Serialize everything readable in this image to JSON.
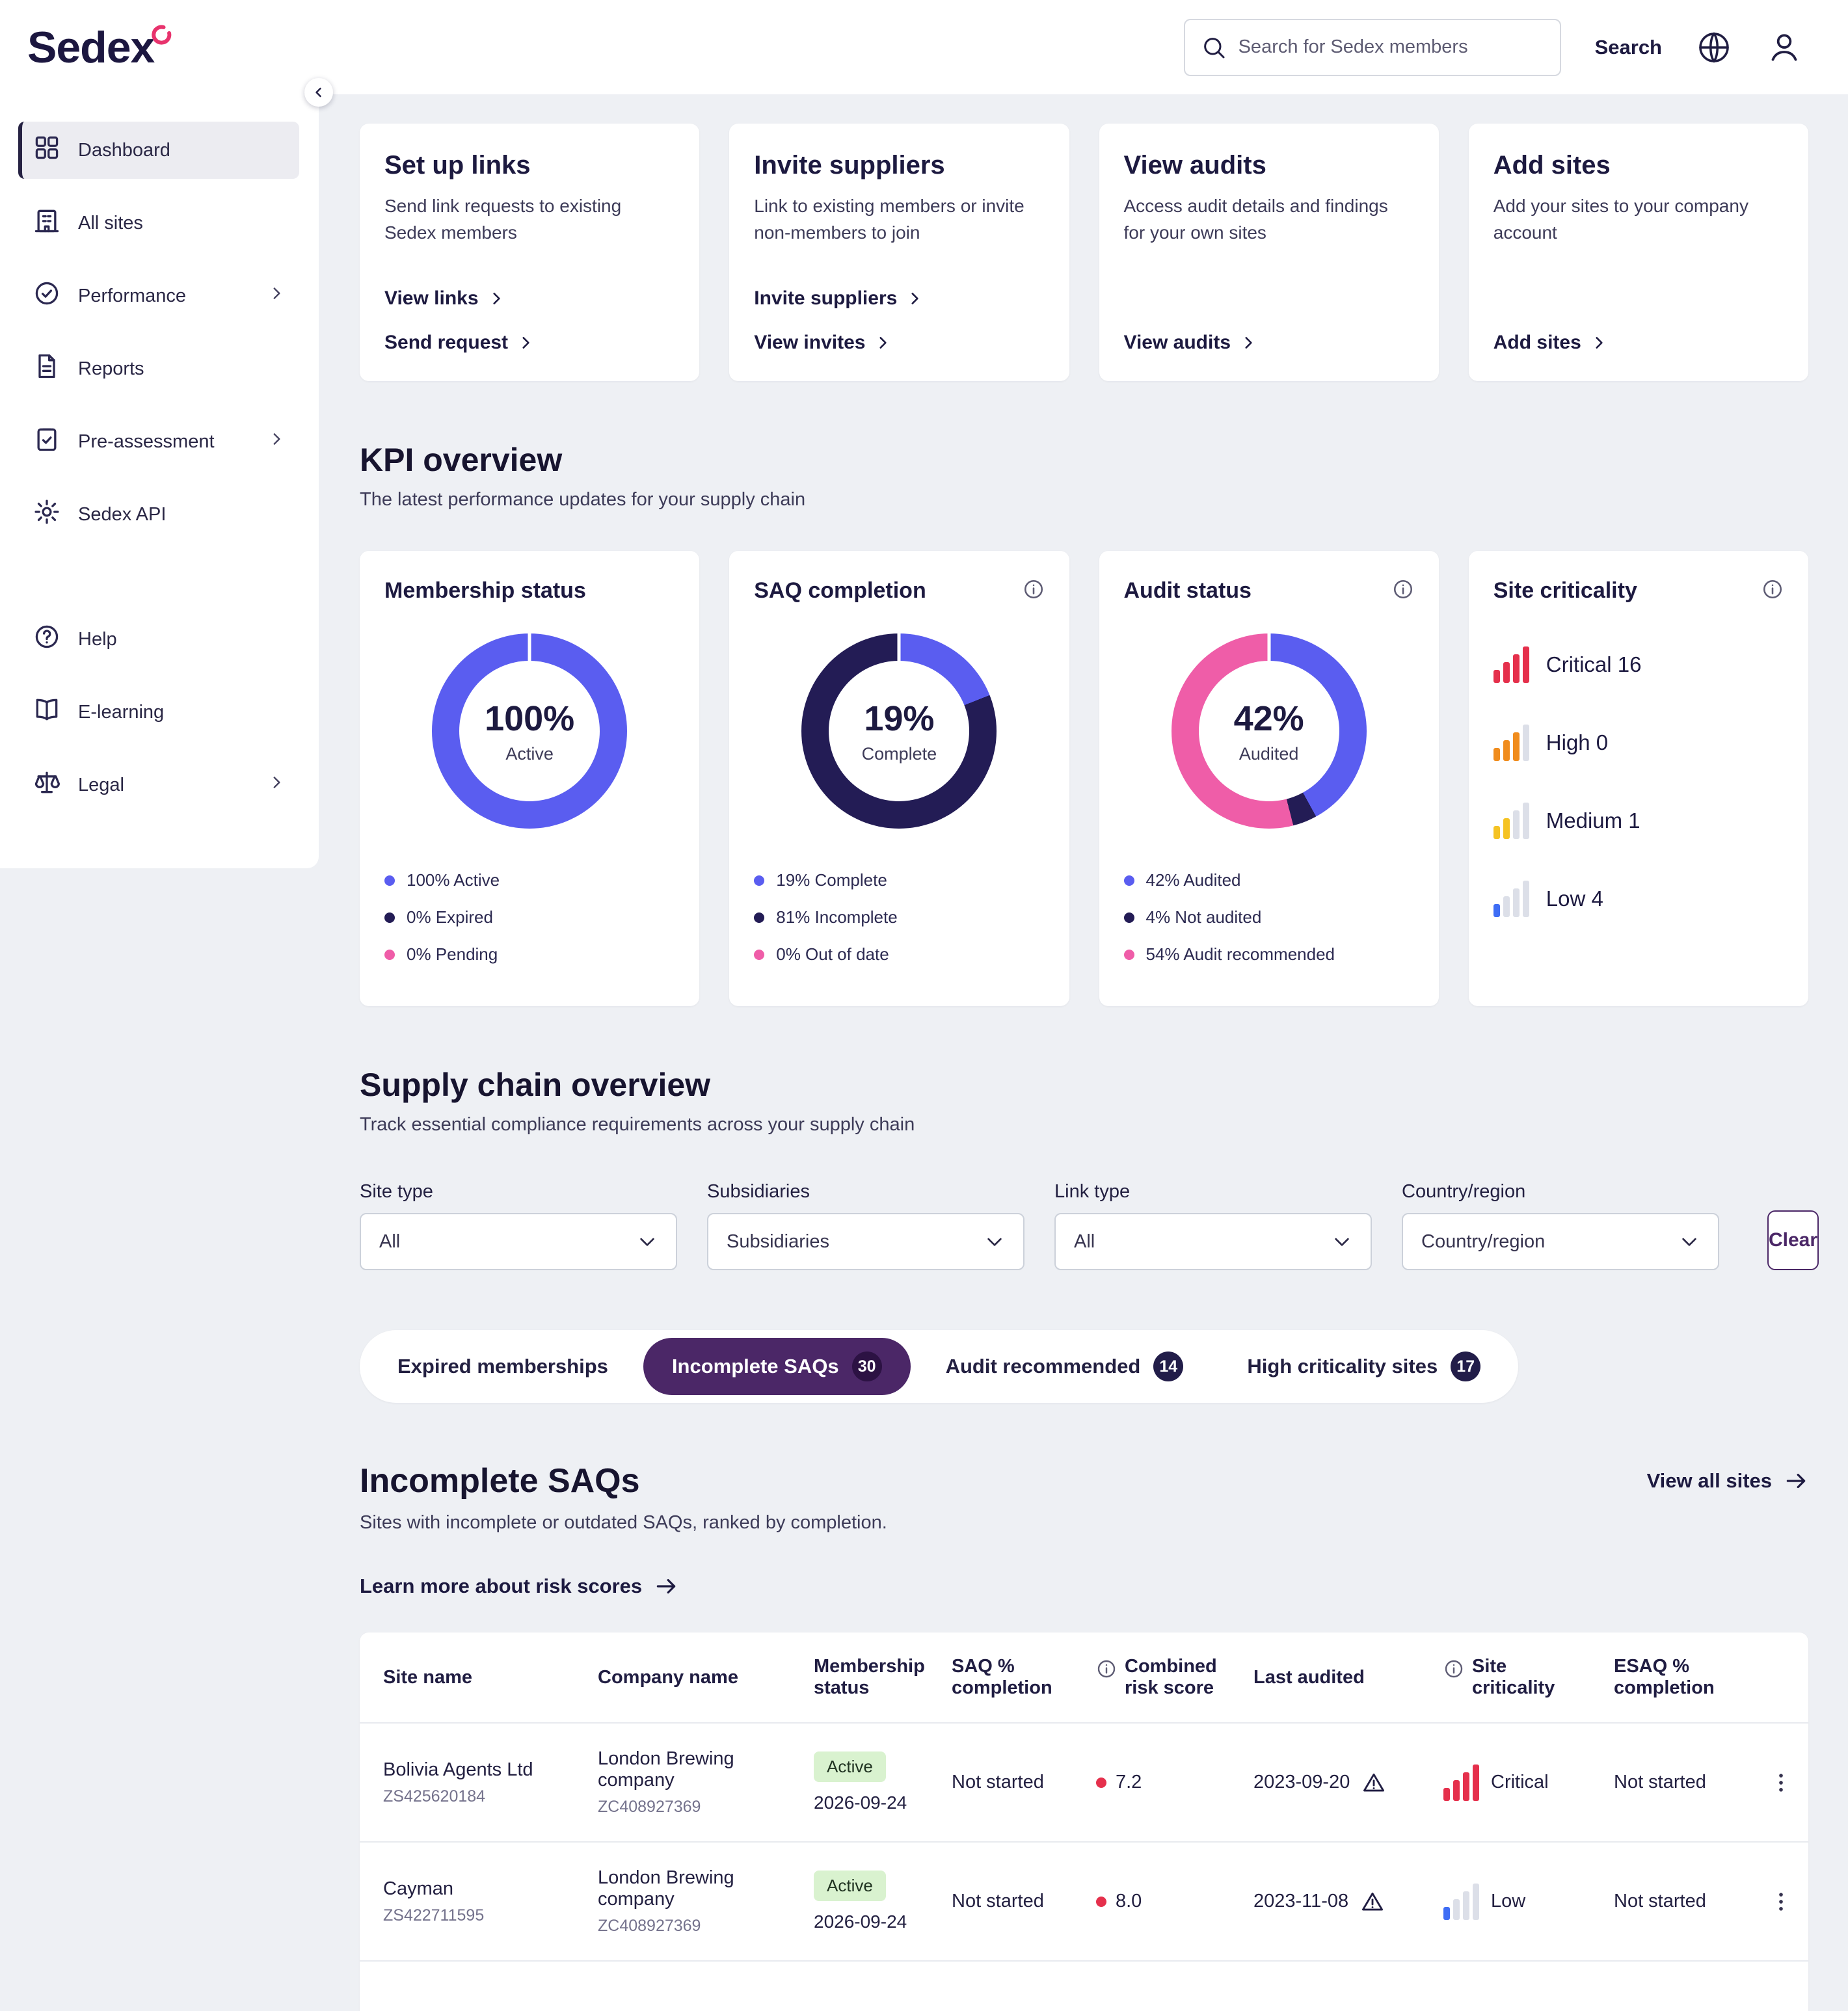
{
  "colors": {
    "brand_purple": "#4b2767",
    "chart_blue": "#5a5df0",
    "chart_dark_navy": "#231c55",
    "chart_pink": "#ef5da8",
    "critical_red": "#e5304c",
    "high_orange": "#f08c1d",
    "medium_yellow": "#f5c324",
    "low_blue": "#3e6df5",
    "active_badge_green": "#d9f2cf"
  },
  "topbar": {
    "logo_text": "Sedex",
    "search_placeholder": "Search for Sedex members",
    "search_button": "Search"
  },
  "sidebar": {
    "main_items": [
      {
        "label": "Dashboard"
      },
      {
        "label": "All sites"
      },
      {
        "label": "Performance"
      },
      {
        "label": "Reports"
      },
      {
        "label": "Pre-assessment"
      },
      {
        "label": "Sedex API"
      }
    ],
    "secondary_items": [
      {
        "label": "Help"
      },
      {
        "label": "E-learning"
      },
      {
        "label": "Legal"
      }
    ]
  },
  "action_cards": [
    {
      "title": "Set up links",
      "description": "Send link requests to existing Sedex members",
      "link1": "View links",
      "link2": "Send request"
    },
    {
      "title": "Invite suppliers",
      "description": "Link to existing members or invite non-members to join",
      "link1": "Invite suppliers",
      "link2": "View invites"
    },
    {
      "title": "View audits",
      "description": "Access audit details and findings for your own sites",
      "link1": "View audits"
    },
    {
      "title": "Add sites",
      "description": "Add your sites to your company account",
      "link1": "Add sites"
    }
  ],
  "kpi": {
    "heading": "KPI overview",
    "subheading": "The latest performance updates for your supply chain",
    "membership": {
      "title": "Membership status",
      "center_value": "100%",
      "center_label": "Active",
      "segments": [
        {
          "label": "Active",
          "pct": 100,
          "color": "#5a5df0"
        }
      ],
      "legend": [
        {
          "text": "100% Active",
          "color": "#5a5df0"
        },
        {
          "text": "0% Expired",
          "color": "#231c55"
        },
        {
          "text": "0% Pending",
          "color": "#ef5da8"
        }
      ]
    },
    "saq": {
      "title": "SAQ completion",
      "center_value": "19%",
      "center_label": "Complete",
      "segments": [
        {
          "label": "Complete",
          "pct": 19,
          "color": "#5a5df0"
        },
        {
          "label": "Incomplete",
          "pct": 81,
          "color": "#231c55"
        }
      ],
      "legend": [
        {
          "text": "19% Complete",
          "color": "#5a5df0"
        },
        {
          "text": "81% Incomplete",
          "color": "#231c55"
        },
        {
          "text": "0% Out of date",
          "color": "#ef5da8"
        }
      ]
    },
    "audit": {
      "title": "Audit status",
      "center_value": "42%",
      "center_label": "Audited",
      "segments": [
        {
          "label": "Audited",
          "pct": 42,
          "color": "#5a5df0"
        },
        {
          "label": "Not audited",
          "pct": 4,
          "color": "#231c55"
        },
        {
          "label": "Audit recommended",
          "pct": 54,
          "color": "#ef5da8"
        }
      ],
      "legend": [
        {
          "text": "42% Audited",
          "color": "#5a5df0"
        },
        {
          "text": "4% Not audited",
          "color": "#231c55"
        },
        {
          "text": "54% Audit recommended",
          "color": "#ef5da8"
        }
      ]
    },
    "criticality": {
      "title": "Site criticality",
      "rows": [
        {
          "label": "Critical 16",
          "level": 4,
          "color": "#e5304c"
        },
        {
          "label": "High 0",
          "level": 3,
          "color": "#f08c1d"
        },
        {
          "label": "Medium 1",
          "level": 2,
          "color": "#f5c324"
        },
        {
          "label": "Low 4",
          "level": 1,
          "color": "#3e6df5"
        }
      ]
    }
  },
  "supply_chain": {
    "heading": "Supply chain overview",
    "subheading": "Track essential compliance requirements across your supply chain",
    "filters": [
      {
        "label": "Site type",
        "value": "All"
      },
      {
        "label": "Subsidiaries",
        "value": "Subsidiaries"
      },
      {
        "label": "Link type",
        "value": "All"
      },
      {
        "label": "Country/region",
        "value": "Country/region"
      }
    ],
    "clear_button": "Clear",
    "tabs": [
      {
        "label": "Expired memberships"
      },
      {
        "label": "Incomplete SAQs",
        "count": "30"
      },
      {
        "label": "Audit recommended",
        "count": "14"
      },
      {
        "label": "High criticality sites",
        "count": "17"
      }
    ]
  },
  "saq_table": {
    "heading": "Incomplete SAQs",
    "subheading": "Sites with incomplete or outdated SAQs, ranked by completion.",
    "view_all_label": "View all sites",
    "learn_more_label": "Learn more about risk scores",
    "columns": [
      "Site name",
      "Company name",
      "Membership status",
      "SAQ % completion",
      "Combined risk score",
      "Last audited",
      "Site criticality",
      "ESAQ % completion"
    ],
    "rows": [
      {
        "site_name": "Bolivia Agents Ltd",
        "site_id": "ZS425620184",
        "company_name": "London Brewing company",
        "company_id": "ZC408927369",
        "membership_status": "Active",
        "membership_expiry": "2026-09-24",
        "saq_completion": "Not started",
        "risk_score": "7.2",
        "risk_color": "#e5304c",
        "last_audited": "2023-09-20",
        "criticality": {
          "label": "Critical",
          "level": 4,
          "color": "#e5304c"
        },
        "esaq_completion": "Not started"
      },
      {
        "site_name": "Cayman",
        "site_id": "ZS422711595",
        "company_name": "London Brewing company",
        "company_id": "ZC408927369",
        "membership_status": "Active",
        "membership_expiry": "2026-09-24",
        "saq_completion": "Not started",
        "risk_score": "8.0",
        "risk_color": "#e5304c",
        "last_audited": "2023-11-08",
        "criticality": {
          "label": "Low",
          "level": 1,
          "color": "#3e6df5"
        },
        "esaq_completion": "Not started"
      }
    ]
  }
}
